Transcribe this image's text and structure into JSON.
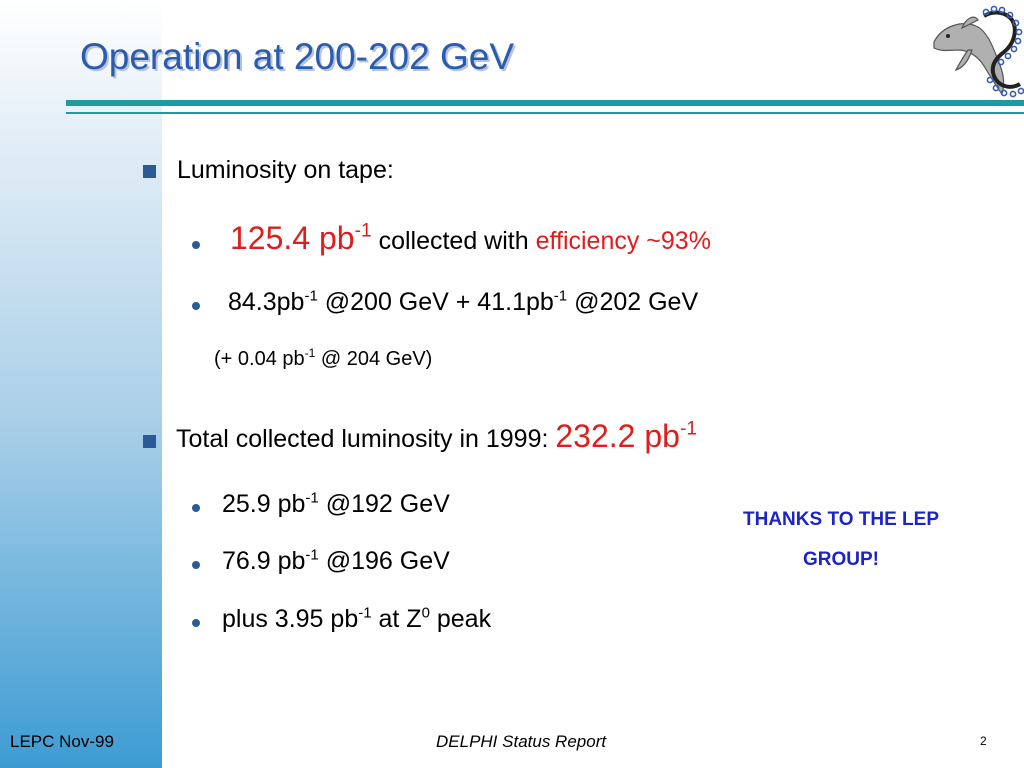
{
  "title": "Operation at 200-202 GeV",
  "bullet1": {
    "label": "Luminosity on tape:"
  },
  "sub1": {
    "value": "125.4 pb",
    "sup": "-1",
    "middle": " collected with ",
    "efficiency": "efficiency ~93%"
  },
  "sub2": {
    "a": "84.3pb",
    "a_sup": "-1",
    "b": " @200 GeV + 41.1pb",
    "b_sup": "-1",
    "c": " @202 GeV"
  },
  "note": {
    "a": "(+ 0.04 pb",
    "a_sup": "-1",
    "b": " @ 204 GeV)"
  },
  "bullet2": {
    "label": "Total collected luminosity in 1999: ",
    "value": "232.2 pb",
    "sup": "-1"
  },
  "items": [
    {
      "a": "25.9 pb",
      "sup": "-1",
      "b": " @192 GeV"
    },
    {
      "a": "76.9 pb",
      "sup": "-1",
      "b": " @196 GeV"
    }
  ],
  "item3": {
    "a": "plus 3.95 pb",
    "sup": "-1",
    "b": " at Z",
    "sup2": "0",
    "c": " peak"
  },
  "thanks": {
    "line1": "THANKS TO THE LEP",
    "line2": "GROUP!"
  },
  "footer": {
    "left": "LEPC Nov-99",
    "center": "DELPHI Status Report",
    "page": "2"
  },
  "colors": {
    "title": "#2a5cae",
    "rule": "#1e9aa0",
    "highlight": "#e01c1c",
    "thanks": "#1b24c7",
    "bullet": "#2a5a98"
  },
  "icons": {
    "logo": "delphi-dolphin-logo-icon"
  }
}
